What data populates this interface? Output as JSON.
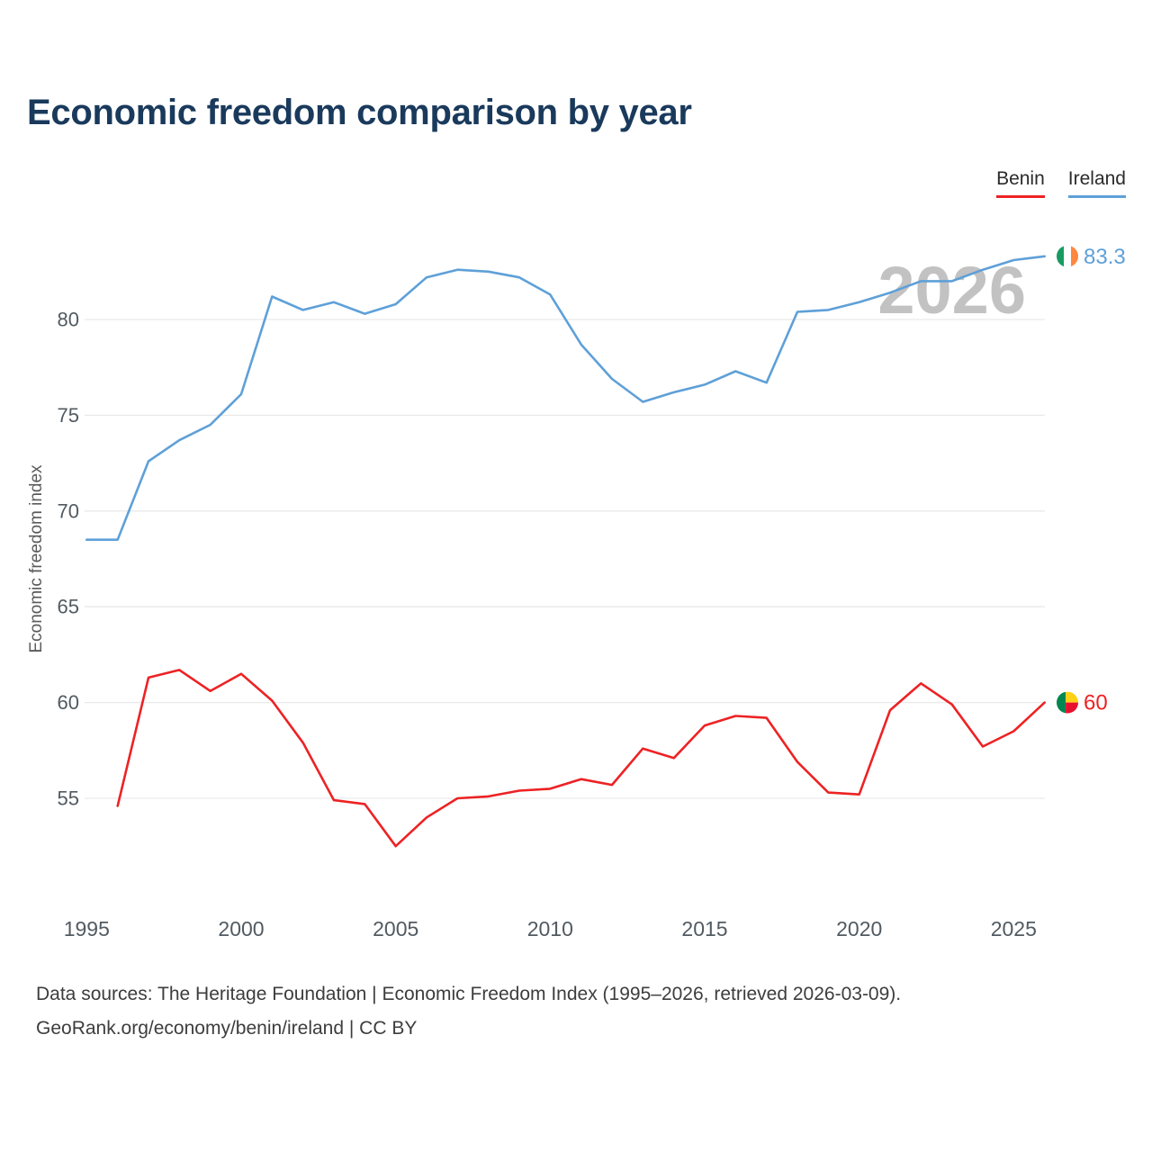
{
  "legend": {
    "benin": {
      "label": "Benin",
      "color": "#ed2224"
    },
    "ireland": {
      "label": "Ireland",
      "color": "#5ea0d8"
    }
  },
  "footer": {
    "line1": "Data sources: The Heritage Foundation | Economic Freedom Index (1995–2026, retrieved 2026-03-09).",
    "line2": "GeoRank.org/economy/benin/ireland | CC BY"
  },
  "chart_data": {
    "type": "line",
    "title": "Economic freedom comparison by year",
    "xlabel": "",
    "ylabel": "Economic freedom index",
    "watermark": "2026",
    "x_range": [
      1994,
      2027
    ],
    "y_range": [
      50,
      85
    ],
    "xticks": [
      1995,
      2000,
      2005,
      2010,
      2015,
      2020,
      2025
    ],
    "yticks": [
      55,
      60,
      65,
      70,
      75,
      80
    ],
    "grid": "horizontal",
    "legend_position": "top-right",
    "colors": {
      "grid": "#e9e9e9",
      "tick": "#525a61",
      "axis_title": "#5a5a5a",
      "watermark": "#c2c2c2"
    },
    "series": [
      {
        "name": "Ireland",
        "color": "#5ea0d8",
        "start_year": 1995,
        "end_label": "83.3",
        "values": [
          68.5,
          68.5,
          72.6,
          73.7,
          74.5,
          76.1,
          81.2,
          80.5,
          80.9,
          80.3,
          80.8,
          82.2,
          82.6,
          82.5,
          82.2,
          81.3,
          78.7,
          76.9,
          75.7,
          76.2,
          76.6,
          77.3,
          76.7,
          80.4,
          80.5,
          80.9,
          81.4,
          82.0,
          82.0,
          82.6,
          83.1,
          83.3
        ],
        "flag": {
          "id": "ireland",
          "stripes": [
            {
              "x": 0,
              "y": 0,
              "w": 0.333,
              "h": 1,
              "color": "#169b62"
            },
            {
              "x": 0.333,
              "y": 0,
              "w": 0.334,
              "h": 1,
              "color": "#ffffff"
            },
            {
              "x": 0.667,
              "y": 0,
              "w": 0.333,
              "h": 1,
              "color": "#ff883e"
            }
          ]
        }
      },
      {
        "name": "Benin",
        "color": "#ed2224",
        "start_year": 1996,
        "end_label": "60",
        "values": [
          54.6,
          61.3,
          61.7,
          60.6,
          61.5,
          60.1,
          57.9,
          54.9,
          54.7,
          52.5,
          54.0,
          55.0,
          55.1,
          55.4,
          55.5,
          56.0,
          55.7,
          57.6,
          57.1,
          58.8,
          59.3,
          59.2,
          56.9,
          55.3,
          55.2,
          59.6,
          61.0,
          59.9,
          57.7,
          58.5,
          60.0
        ],
        "flag": {
          "id": "benin",
          "stripes": [
            {
              "x": 0,
              "y": 0,
              "w": 0.42,
              "h": 1,
              "color": "#008751"
            },
            {
              "x": 0.42,
              "y": 0,
              "w": 0.58,
              "h": 0.5,
              "color": "#fcd116"
            },
            {
              "x": 0.42,
              "y": 0.5,
              "w": 0.58,
              "h": 0.5,
              "color": "#e8112d"
            }
          ]
        }
      }
    ]
  }
}
